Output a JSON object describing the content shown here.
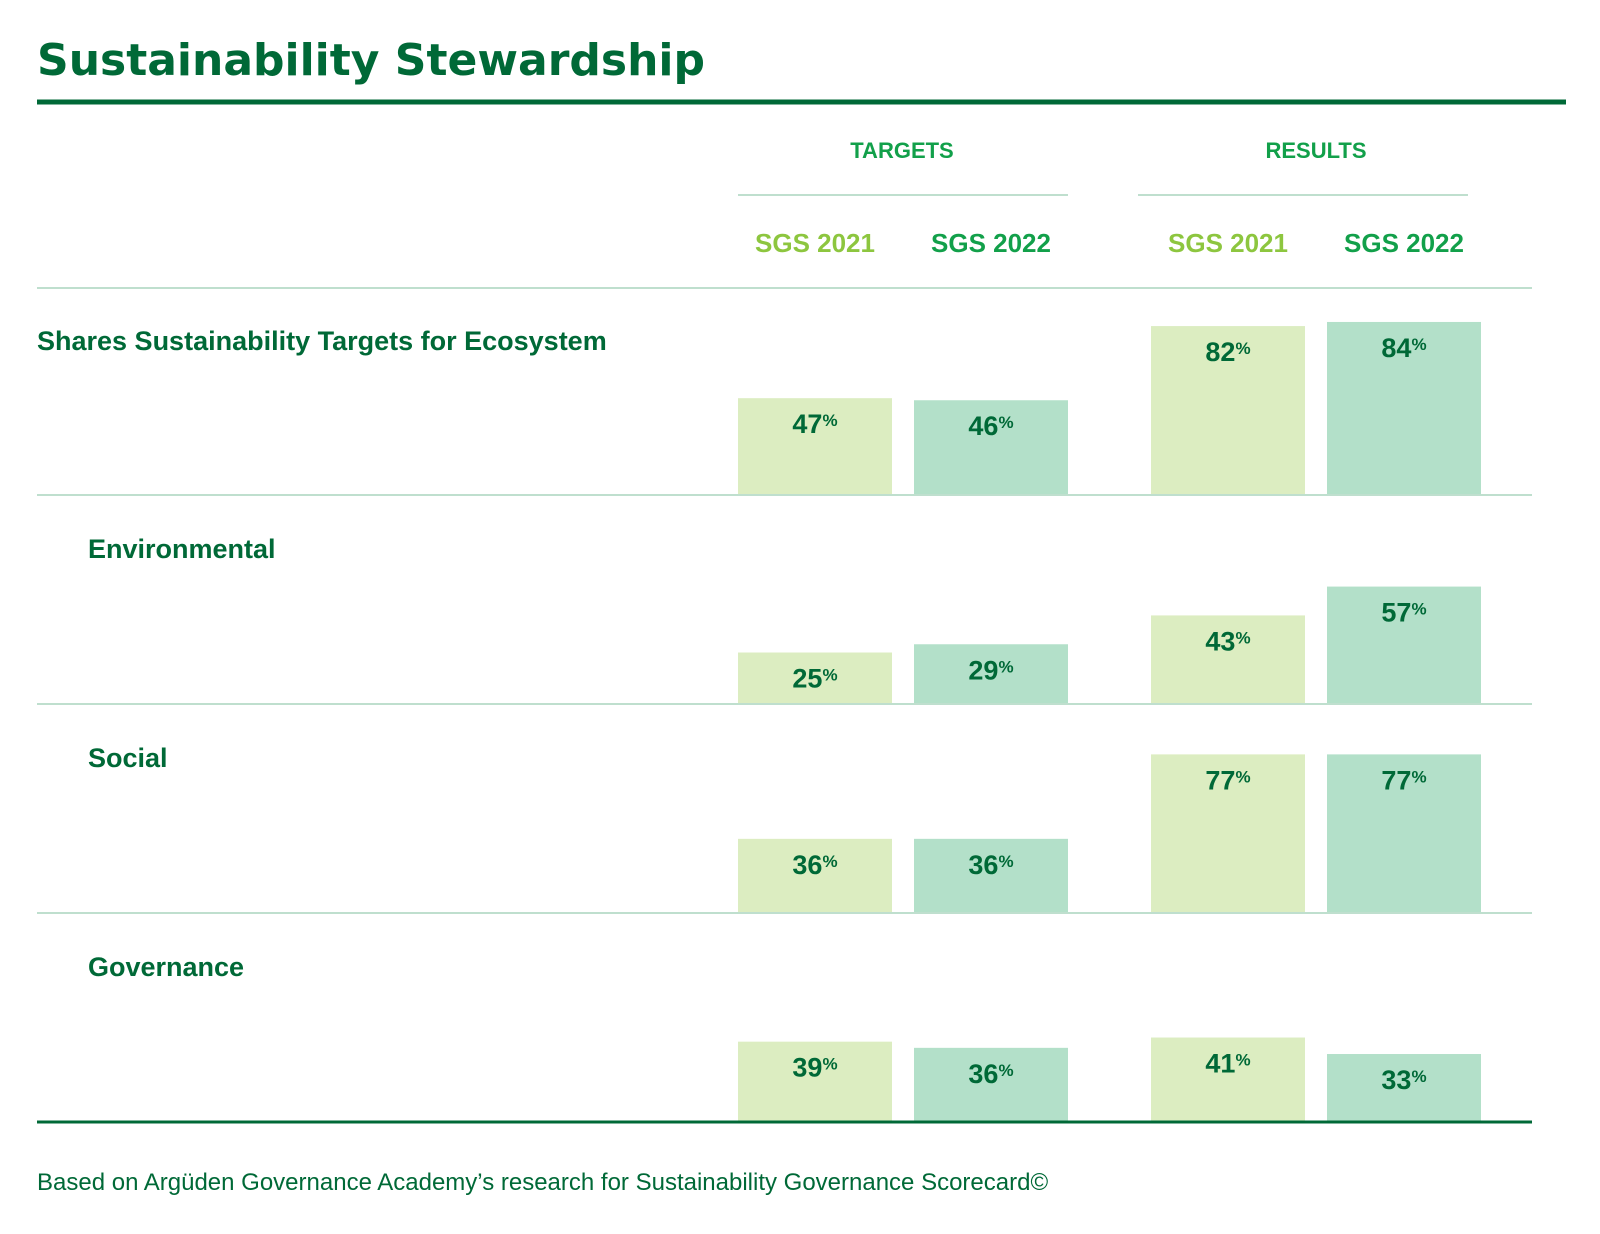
{
  "title": "Sustainability Stewardship",
  "footnote": "Based on Argüden Governance Academy’s research for Sustainability Governance Scorecard©",
  "colors": {
    "title": "#006937",
    "accent_green": "#12a04a",
    "light_green_text": "#8dc63f",
    "bar_2021": "#dcedc1",
    "bar_2022": "#b3e0c9",
    "rule": "#006937",
    "thin_rule": "#bfdfce"
  },
  "chart_data": {
    "type": "bar",
    "groups": [
      "TARGETS",
      "RESULTS"
    ],
    "series": [
      "SGS 2021",
      "SGS 2022"
    ],
    "categories": [
      "Shares Sustainability Targets for Ecosystem",
      "Environmental",
      "Social",
      "Governance"
    ],
    "values": {
      "TARGETS": {
        "SGS 2021": [
          47,
          25,
          36,
          39
        ],
        "SGS 2022": [
          46,
          29,
          36,
          36
        ]
      },
      "RESULTS": {
        "SGS 2021": [
          82,
          43,
          77,
          41
        ],
        "SGS 2022": [
          84,
          57,
          77,
          33
        ]
      }
    },
    "value_suffix": "%"
  }
}
